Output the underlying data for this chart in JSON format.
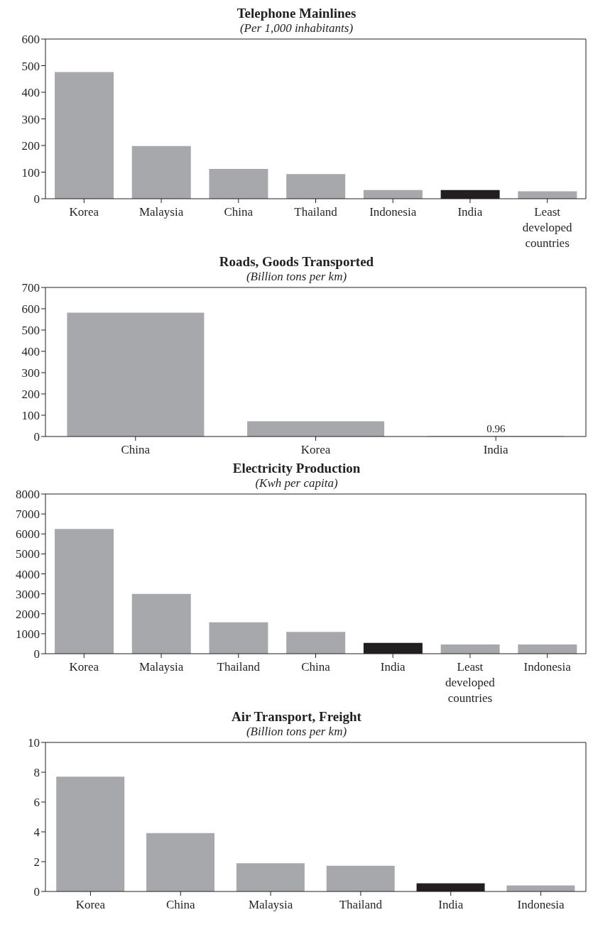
{
  "chart_data": [
    {
      "type": "bar",
      "title": "Telephone Mainlines",
      "subtitle": "(Per 1,000 inhabitants)",
      "categories": [
        "Korea",
        "Malaysia",
        "China",
        "Thailand",
        "Indonesia",
        "India",
        "Least developed countries"
      ],
      "values": [
        476,
        198,
        112,
        93,
        33,
        33,
        28
      ],
      "colors": [
        "#a7a8ac",
        "#a7a8ac",
        "#a7a8ac",
        "#a7a8ac",
        "#a7a8ac",
        "#231f20",
        "#a7a8ac"
      ],
      "ylim": [
        0,
        600
      ],
      "yticks": [
        0,
        100,
        200,
        300,
        400,
        500,
        600
      ]
    },
    {
      "type": "bar",
      "title": "Roads, Goods Transported",
      "subtitle": "(Billion tons per km)",
      "categories": [
        "China",
        "Korea",
        "India"
      ],
      "values": [
        582,
        72,
        0.96
      ],
      "value_labels": [
        null,
        null,
        "0.96"
      ],
      "colors": [
        "#a7a8ac",
        "#a7a8ac",
        "#231f20"
      ],
      "ylim": [
        0,
        700
      ],
      "yticks": [
        0,
        100,
        200,
        300,
        400,
        500,
        600,
        700
      ]
    },
    {
      "type": "bar",
      "title": "Electricity Production",
      "subtitle": "(Kwh per capita)",
      "categories": [
        "Korea",
        "Malaysia",
        "Thailand",
        "China",
        "India",
        "Least developed countries",
        "Indonesia"
      ],
      "values": [
        6250,
        3000,
        1570,
        1090,
        540,
        460,
        460
      ],
      "colors": [
        "#a7a8ac",
        "#a7a8ac",
        "#a7a8ac",
        "#a7a8ac",
        "#231f20",
        "#a7a8ac",
        "#a7a8ac"
      ],
      "ylim": [
        0,
        8000
      ],
      "yticks": [
        0,
        1000,
        2000,
        3000,
        4000,
        5000,
        6000,
        7000,
        8000
      ]
    },
    {
      "type": "bar",
      "title": "Air Transport, Freight",
      "subtitle": "(Billion tons per km)",
      "categories": [
        "Korea",
        "China",
        "Malaysia",
        "Thailand",
        "India",
        "Indonesia"
      ],
      "values": [
        7.7,
        3.92,
        1.89,
        1.73,
        0.55,
        0.41
      ],
      "colors": [
        "#a7a8ac",
        "#a7a8ac",
        "#a7a8ac",
        "#a7a8ac",
        "#231f20",
        "#a7a8ac"
      ],
      "ylim": [
        0,
        10
      ],
      "yticks": [
        0,
        2,
        4,
        6,
        8,
        10
      ]
    }
  ]
}
